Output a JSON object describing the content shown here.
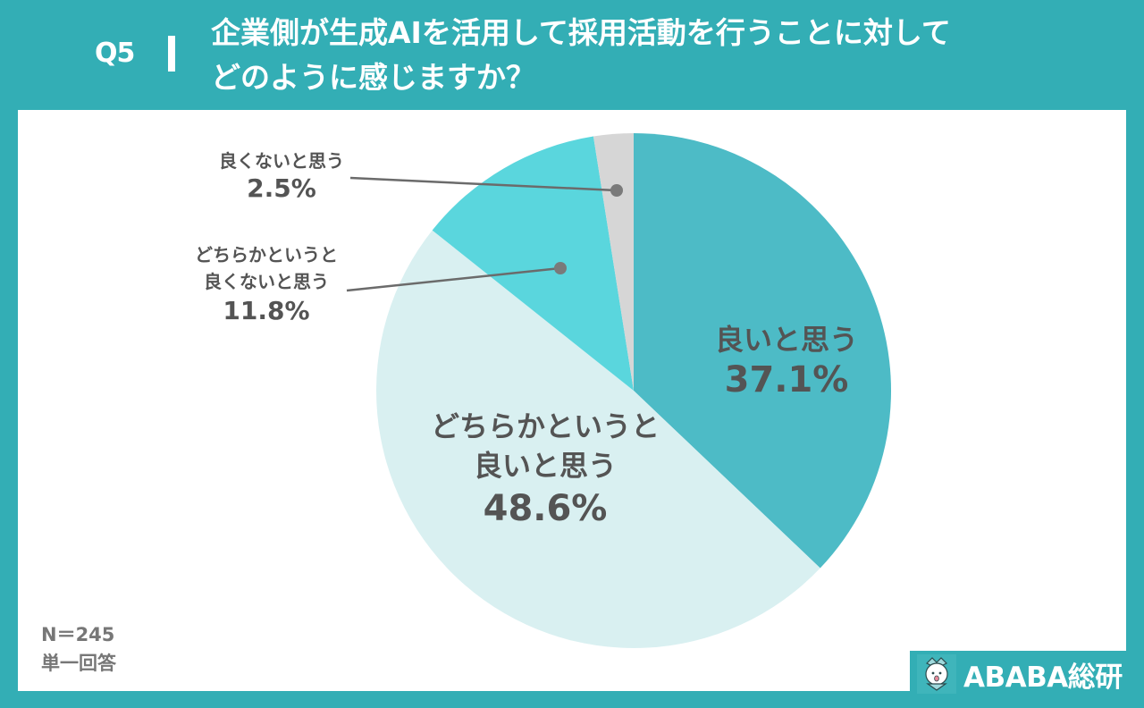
{
  "header": {
    "question_number": "Q5",
    "title_line1": "企業側が生成AIを活用して採用活動を行うことに対して",
    "title_line2": "どのように感じますか？"
  },
  "labels": {
    "good": {
      "category": "良いと思う",
      "percent": "37.1%"
    },
    "rather_good": {
      "category_line1": "どちらかというと",
      "category_line2": "良いと思う",
      "percent": "48.6%"
    },
    "rather_bad": {
      "category_line1": "どちらかというと",
      "category_line2": "良くないと思う",
      "percent": "11.8%"
    },
    "bad": {
      "category": "良くないと思う",
      "percent": "2.5%"
    }
  },
  "footnote": {
    "sample_size": "N＝245",
    "answer_type": "単一回答"
  },
  "brand": {
    "name": "ABABA総研",
    "icon": "alpaca-mascot-icon"
  },
  "colors": {
    "background": "#33aeb5",
    "good": "#4dbbc6",
    "rather_good": "#d9f0f1",
    "rather_bad": "#5ad6dd",
    "bad": "#d6d6d6",
    "text": "#545454",
    "leader": "#6b6b6b"
  },
  "chart_data": {
    "type": "pie",
    "title": "企業側が生成AIを活用して採用活動を行うことに対してどのように感じますか？",
    "categories": [
      "良いと思う",
      "どちらかというと良いと思う",
      "どちらかというと良くないと思う",
      "良くないと思う"
    ],
    "values": [
      37.1,
      48.6,
      11.8,
      2.5
    ],
    "unit": "%",
    "start_angle": "12 o'clock, clockwise",
    "n": 245,
    "annotations": [
      "N＝245",
      "単一回答"
    ]
  }
}
